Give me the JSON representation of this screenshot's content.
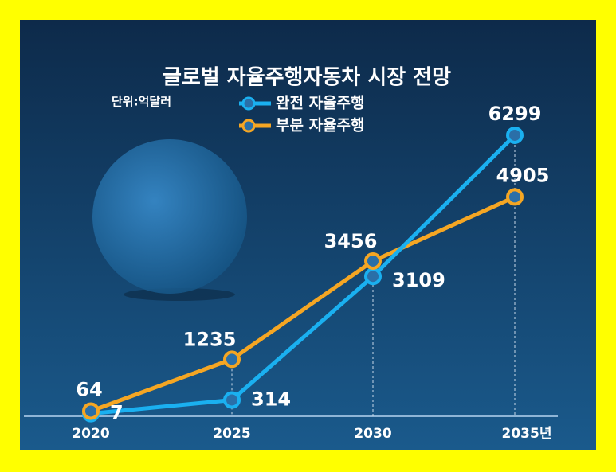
{
  "chart_data": {
    "type": "line",
    "title": "글로벌 자율주행자동차 시장 전망",
    "unit": "단위:억달러",
    "categories": [
      "2020",
      "2025",
      "2030",
      "2035년"
    ],
    "series": [
      {
        "name": "완전 자율주행",
        "color": "#1ab0f0",
        "values": [
          7,
          314,
          3109,
          6299
        ]
      },
      {
        "name": "부분 자율주행",
        "color": "#f5a623",
        "values": [
          64,
          1235,
          3456,
          4905
        ]
      }
    ],
    "ylim": [
      0,
      7000
    ]
  }
}
